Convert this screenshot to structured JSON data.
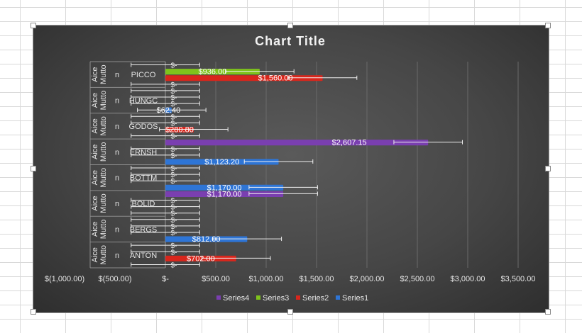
{
  "chart_data": {
    "type": "bar",
    "orientation": "horizontal",
    "title": "Chart Title",
    "outer_category": "Aice Mutto",
    "inner_label": "n",
    "categories": [
      "ANTON",
      "BERGS",
      "BOLID",
      "BOTTM",
      "ERNSH",
      "GODOS",
      "HUNGC",
      "PICCO"
    ],
    "series": [
      {
        "name": "Series1",
        "color": "#2e75d6",
        "values": [
          null,
          812.0,
          null,
          1170.0,
          1123.2,
          null,
          62.4,
          null
        ]
      },
      {
        "name": "Series2",
        "color": "#d9261c",
        "values": [
          702.0,
          null,
          null,
          null,
          null,
          280.8,
          null,
          1560.0
        ]
      },
      {
        "name": "Series3",
        "color": "#7fc31c",
        "values": [
          null,
          null,
          null,
          null,
          null,
          null,
          null,
          936.0
        ]
      },
      {
        "name": "Series4",
        "color": "#7a3fb0",
        "values": [
          null,
          null,
          1170.0,
          null,
          2607.15,
          null,
          null,
          null
        ]
      }
    ],
    "data_labels": [
      [
        "",
        "$702.00",
        "",
        ""
      ],
      [
        "$812.00",
        "",
        "",
        ""
      ],
      [
        "",
        "",
        "",
        "$1,170.00"
      ],
      [
        "$1,170.00",
        "",
        "",
        ""
      ],
      [
        "$1,123.20",
        "",
        "",
        "$2,607.15"
      ],
      [
        "",
        "$280.80",
        "",
        ""
      ],
      [
        "$62.40",
        "",
        "",
        ""
      ],
      [
        "",
        "$1,560.00",
        "$936.00",
        ""
      ]
    ],
    "empty_label": "$-",
    "error_bar_halfwidth": 340,
    "xlim": [
      -1000,
      3500
    ],
    "xticks": [
      -1000,
      -500,
      0,
      500,
      1000,
      1500,
      2000,
      2500,
      3000,
      3500
    ],
    "xtick_labels": [
      "$(1,000.00)",
      "$(500.00)",
      "$-",
      "$500.00",
      "$1,000.00",
      "$1,500.00",
      "$2,000.00",
      "$2,500.00",
      "$3,000.00",
      "$3,500.00"
    ],
    "grid": true,
    "legend_position": "bottom",
    "legend_order": [
      "Series4",
      "Series3",
      "Series2",
      "Series1"
    ]
  }
}
